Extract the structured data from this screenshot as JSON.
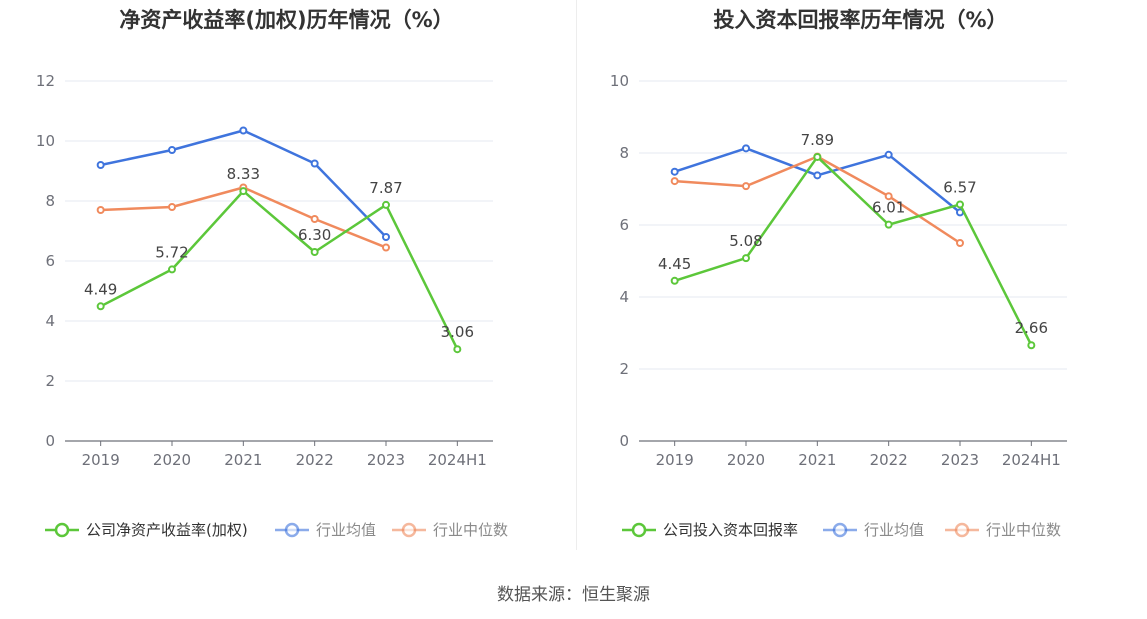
{
  "source": "数据来源：恒生聚源",
  "chart_data": [
    {
      "type": "line",
      "title": "净资产收益率(加权)历年情况（%）",
      "categories": [
        "2019",
        "2020",
        "2021",
        "2022",
        "2023",
        "2024H1"
      ],
      "ylim": [
        0,
        12
      ],
      "yticks": [
        0,
        2,
        4,
        6,
        8,
        10,
        12
      ],
      "grid": true,
      "legend_position": "bottom",
      "series": [
        {
          "name": "公司净资产收益率(加权)",
          "color": "#5cc73a",
          "values": [
            4.49,
            5.72,
            8.33,
            6.3,
            7.87,
            3.06
          ],
          "labels": [
            "4.49",
            "5.72",
            "8.33",
            "6.30",
            "7.87",
            "3.06"
          ]
        },
        {
          "name": "行业均值",
          "color": "#3f74dd",
          "values": [
            9.2,
            9.7,
            10.35,
            9.25,
            6.8,
            null
          ]
        },
        {
          "name": "行业中位数",
          "color": "#f08a5d",
          "values": [
            7.7,
            7.8,
            8.45,
            7.4,
            6.45,
            null
          ]
        }
      ]
    },
    {
      "type": "line",
      "title": "投入资本回报率历年情况（%）",
      "categories": [
        "2019",
        "2020",
        "2021",
        "2022",
        "2023",
        "2024H1"
      ],
      "ylim": [
        0,
        10
      ],
      "yticks": [
        0,
        2,
        4,
        6,
        8,
        10
      ],
      "grid": true,
      "legend_position": "bottom",
      "series": [
        {
          "name": "公司投入资本回报率",
          "color": "#5cc73a",
          "values": [
            4.45,
            5.08,
            7.89,
            6.01,
            6.57,
            2.66
          ],
          "labels": [
            "4.45",
            "5.08",
            "7.89",
            "6.01",
            "6.57",
            "2.66"
          ]
        },
        {
          "name": "行业均值",
          "color": "#3f74dd",
          "values": [
            7.48,
            8.13,
            7.38,
            7.95,
            6.35,
            null
          ]
        },
        {
          "name": "行业中位数",
          "color": "#f08a5d",
          "values": [
            7.22,
            7.08,
            7.9,
            6.8,
            5.5,
            null
          ]
        }
      ]
    }
  ]
}
